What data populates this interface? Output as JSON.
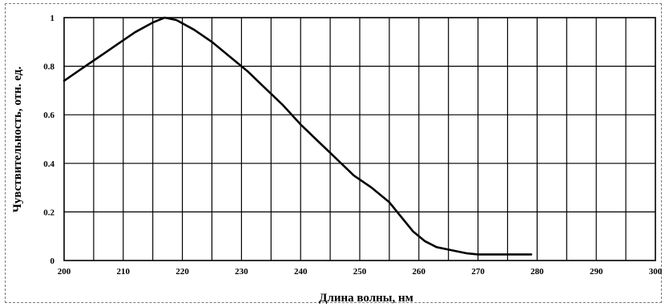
{
  "chart_data": {
    "type": "line",
    "title": "",
    "xlabel": "Длина волны, нм",
    "ylabel": "Чувствительность,  отн. ед.",
    "xlim": [
      200,
      300
    ],
    "ylim": [
      0,
      1
    ],
    "grid": true,
    "x_ticks": [
      200,
      210,
      220,
      230,
      240,
      250,
      260,
      270,
      280,
      290,
      300
    ],
    "x_tick_labels": [
      "200",
      "210",
      "220",
      "230",
      "240",
      "250",
      "260",
      "270",
      "280",
      "290",
      "300"
    ],
    "y_ticks": [
      0,
      0.2,
      0.4,
      0.6,
      0.8,
      1
    ],
    "y_tick_labels": [
      "0",
      "0.2",
      "0.4",
      "0.6",
      "0.8",
      "1"
    ],
    "x_grid_step": 5,
    "y_grid_step": 0.2,
    "series": [
      {
        "color": "#000000",
        "x": [
          200,
          203,
          206,
          209,
          212,
          215,
          217,
          219,
          222,
          225,
          228,
          231,
          234,
          237,
          240,
          243,
          246,
          249,
          252,
          255,
          257,
          259,
          261,
          263,
          265,
          268,
          270,
          274,
          278,
          279
        ],
        "y": [
          0.74,
          0.79,
          0.84,
          0.89,
          0.94,
          0.98,
          1.0,
          0.99,
          0.95,
          0.9,
          0.84,
          0.78,
          0.71,
          0.64,
          0.56,
          0.49,
          0.42,
          0.35,
          0.3,
          0.24,
          0.18,
          0.12,
          0.08,
          0.055,
          0.045,
          0.03,
          0.025,
          0.025,
          0.025,
          0.025
        ]
      }
    ]
  }
}
